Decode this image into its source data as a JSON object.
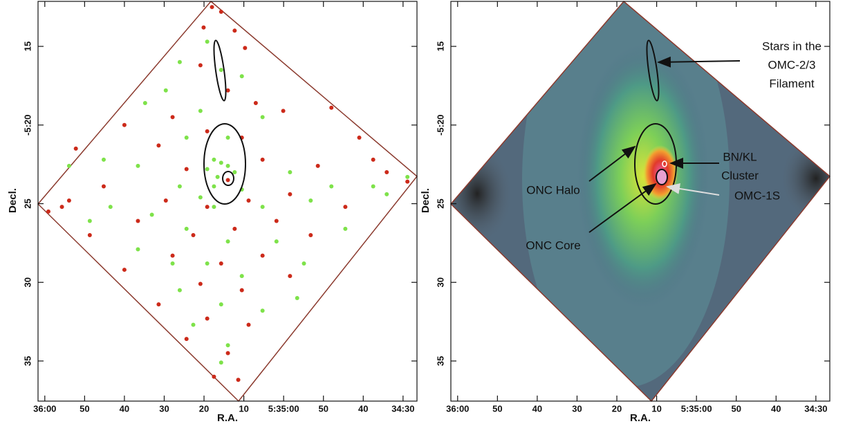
{
  "chart_data": [
    {
      "type": "scatter",
      "x_label": "R.A.",
      "y_label": "Decl.",
      "xlim": [
        121.7,
        26.5
      ],
      "ylim": [
        12.14,
        37.55
      ],
      "xticks": [
        {
          "value": 120,
          "label": "36:00"
        },
        {
          "value": 110,
          "label": "50"
        },
        {
          "value": 100,
          "label": "40"
        },
        {
          "value": 90,
          "label": "30"
        },
        {
          "value": 80,
          "label": "20"
        },
        {
          "value": 70,
          "label": "10"
        },
        {
          "value": 60,
          "label": "5:35:00"
        },
        {
          "value": 50,
          "label": "50"
        },
        {
          "value": 40,
          "label": "40"
        },
        {
          "value": 30,
          "label": "34:30"
        }
      ],
      "yticks": [
        15,
        {
          "value": 20,
          "label": "-5:20"
        },
        25,
        30,
        35
      ],
      "series": [
        {
          "color": "#cc2a1a",
          "x": [
            78.0,
            75.7,
            80.1,
            72.3,
            69.7,
            80.9,
            74.0,
            67.0,
            87.9,
            60.1,
            100.0,
            79.2,
            70.5,
            48.0,
            91.4,
            65.3,
            112.2,
            84.4,
            74.0,
            51.4,
            41.0,
            105.2,
            89.6,
            79.2,
            68.8,
            58.4,
            34.1,
            115.7,
            96.6,
            82.7,
            72.3,
            61.8,
            44.5,
            108.7,
            87.9,
            75.7,
            65.3,
            53.2,
            100.0,
            80.9,
            70.5,
            58.4,
            91.4,
            79.2,
            68.8,
            84.4,
            74.0,
            77.5,
            71.4,
            113.9,
            119.1,
            28.9,
            37.5
          ],
          "y": [
            12.5,
            12.8,
            13.8,
            14.0,
            15.1,
            16.2,
            17.8,
            18.6,
            19.5,
            19.1,
            20.0,
            20.4,
            20.8,
            18.9,
            21.3,
            22.2,
            21.5,
            22.8,
            23.5,
            22.6,
            20.8,
            23.9,
            24.8,
            25.2,
            24.8,
            24.4,
            23.0,
            25.2,
            26.1,
            27.0,
            26.6,
            26.1,
            25.2,
            27.0,
            28.3,
            28.8,
            28.3,
            27.0,
            29.2,
            30.1,
            30.5,
            29.6,
            31.4,
            32.3,
            32.7,
            33.6,
            34.5,
            36.0,
            36.2,
            24.8,
            25.5,
            23.6,
            22.2
          ]
        },
        {
          "color": "#7ee24a",
          "x": [
            79.2,
            86.1,
            75.7,
            89.6,
            70.5,
            94.8,
            80.9,
            65.3,
            74.0,
            84.4,
            77.5,
            75.7,
            74.0,
            79.2,
            72.3,
            76.6,
            96.6,
            58.4,
            113.9,
            105.2,
            86.1,
            70.5,
            48.0,
            37.5,
            28.9,
            93.1,
            77.5,
            65.3,
            53.2,
            108.7,
            84.4,
            74.0,
            61.8,
            44.5,
            96.6,
            79.2,
            70.5,
            56.6,
            86.1,
            75.7,
            65.3,
            82.7,
            74.0,
            75.7,
            87.9,
            103.5,
            34.1,
            54.9,
            77.5,
            80.9
          ],
          "y": [
            14.7,
            16.0,
            16.5,
            17.8,
            16.9,
            18.6,
            19.1,
            19.5,
            20.8,
            20.8,
            22.2,
            22.4,
            22.6,
            22.8,
            23.0,
            23.3,
            22.6,
            23.0,
            22.6,
            22.2,
            23.9,
            24.1,
            23.9,
            23.9,
            23.3,
            25.7,
            25.2,
            25.2,
            24.8,
            26.1,
            26.6,
            27.4,
            27.4,
            26.6,
            27.9,
            28.8,
            29.6,
            31.0,
            30.5,
            31.4,
            31.8,
            32.7,
            34.0,
            35.1,
            28.8,
            25.2,
            24.4,
            28.8,
            23.9,
            24.6
          ]
        }
      ]
    },
    {
      "type": "image",
      "x_label": "R.A.",
      "y_label": "Decl.",
      "xlim": [
        121.7,
        26.5
      ],
      "ylim": [
        12.14,
        37.55
      ],
      "xticks": [
        {
          "value": 120,
          "label": "36:00"
        },
        {
          "value": 110,
          "label": "50"
        },
        {
          "value": 100,
          "label": "40"
        },
        {
          "value": 90,
          "label": "30"
        },
        {
          "value": 80,
          "label": "20"
        },
        {
          "value": 70,
          "label": "10"
        },
        {
          "value": 60,
          "label": "5:35:00"
        },
        {
          "value": 50,
          "label": "50"
        },
        {
          "value": 40,
          "label": "40"
        },
        {
          "value": 30,
          "label": "34:30"
        }
      ],
      "yticks": [
        15,
        {
          "value": 20,
          "label": "-5:20"
        },
        25,
        30,
        35
      ],
      "annotations": [
        [
          "Stars in the",
          "OMC-2/3",
          "Filament"
        ],
        [
          "BN/KL",
          "Cluster"
        ],
        [
          "ONC Halo"
        ],
        [
          "OMC-1S"
        ],
        [
          "ONC Core"
        ]
      ]
    }
  ]
}
